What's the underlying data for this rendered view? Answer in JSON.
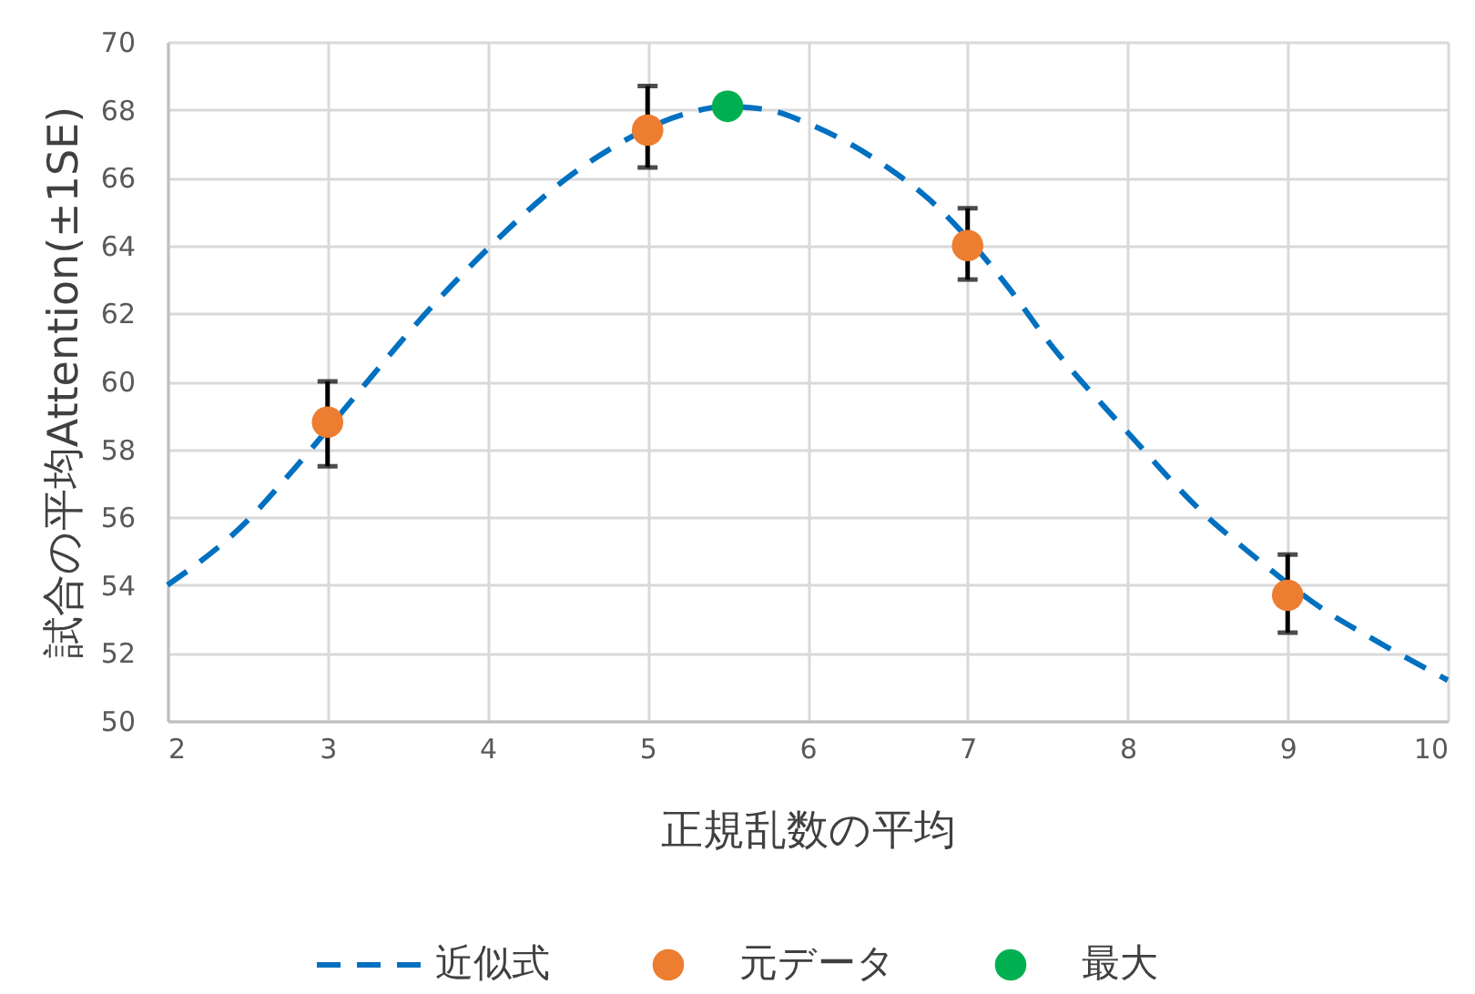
{
  "chart_data": {
    "type": "scatter",
    "xlabel": "正規乱数の平均",
    "ylabel": "試合の平均Attention(±1SE)",
    "xlim": [
      2,
      10
    ],
    "ylim": [
      50,
      70
    ],
    "xticks": [
      2,
      3,
      4,
      5,
      6,
      7,
      8,
      9,
      10
    ],
    "yticks": [
      50,
      52,
      54,
      56,
      58,
      60,
      62,
      64,
      66,
      68,
      70
    ],
    "grid": true,
    "legend": "bottom",
    "series": [
      {
        "name": "近似式",
        "type": "line",
        "color": "#0070c0",
        "line_style": "dashed",
        "marker": "none",
        "x": [
          2,
          2.5,
          2.75,
          3.25,
          3.5,
          4,
          4.5,
          4.75,
          5.25,
          5.5,
          5.75,
          6,
          6.5,
          6.75,
          7.25,
          7.5,
          8,
          8.5,
          8.75,
          9.25,
          9.5,
          10
        ],
        "values": [
          54.0,
          55.9,
          57.2,
          60.0,
          61.4,
          63.9,
          66.0,
          66.8,
          67.9,
          68.1,
          68.0,
          67.6,
          66.3,
          65.4,
          62.8,
          61.2,
          58.5,
          56.0,
          55.0,
          53.2,
          52.5,
          51.2
        ]
      },
      {
        "name": "元データ",
        "color": "#ed7d31",
        "marker": "circle",
        "x": [
          3,
          5,
          7,
          9
        ],
        "values": [
          58.8,
          67.4,
          64.0,
          53.7
        ],
        "errors": [
          [
            57.5,
            60.0
          ],
          [
            66.3,
            68.7
          ],
          [
            63.0,
            65.1
          ],
          [
            52.6,
            54.9
          ]
        ]
      },
      {
        "name": "最大",
        "color": "#00b050",
        "marker": "circle",
        "x": [
          5.5
        ],
        "values": [
          68.1
        ]
      }
    ]
  }
}
